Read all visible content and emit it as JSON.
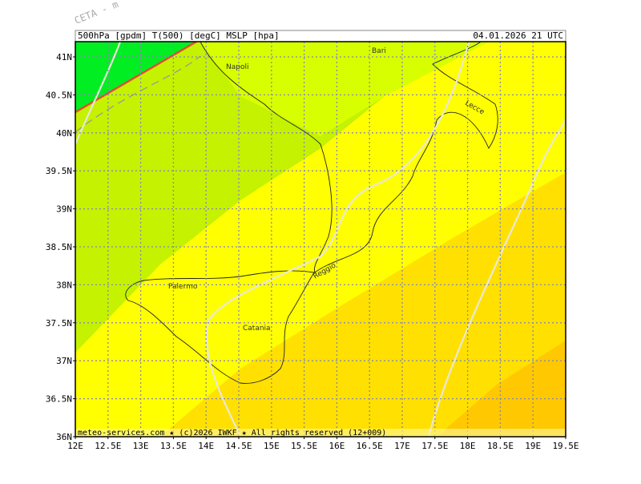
{
  "watermark": "CETA - m",
  "header": {
    "title": "500hPa [gpdm] T(500) [degC] MSLP [hpa]",
    "valid": "04.01.2026 21 UTC"
  },
  "lat_labels": [
    "41N",
    "40.5N",
    "40N",
    "39.5N",
    "39N",
    "38.5N",
    "38N",
    "37.5N",
    "37N",
    "36.5N",
    "36N"
  ],
  "lon_labels": [
    "12E",
    "12.5E",
    "13E",
    "13.5E",
    "14E",
    "14.5E",
    "15E",
    "15.5E",
    "16E",
    "16.5E",
    "17E",
    "17.5E",
    "18E",
    "18.5E",
    "19E",
    "19.5E"
  ],
  "places": [
    {
      "label": "Napoli"
    },
    {
      "label": "Bari"
    },
    {
      "label": "Lecce"
    },
    {
      "label": "Reggio"
    },
    {
      "label": "Palermo"
    },
    {
      "label": "Catania"
    }
  ],
  "footer": "meteo-services.com ★ (c)2026 IWKF ★ All rights reserved (12+009)"
}
